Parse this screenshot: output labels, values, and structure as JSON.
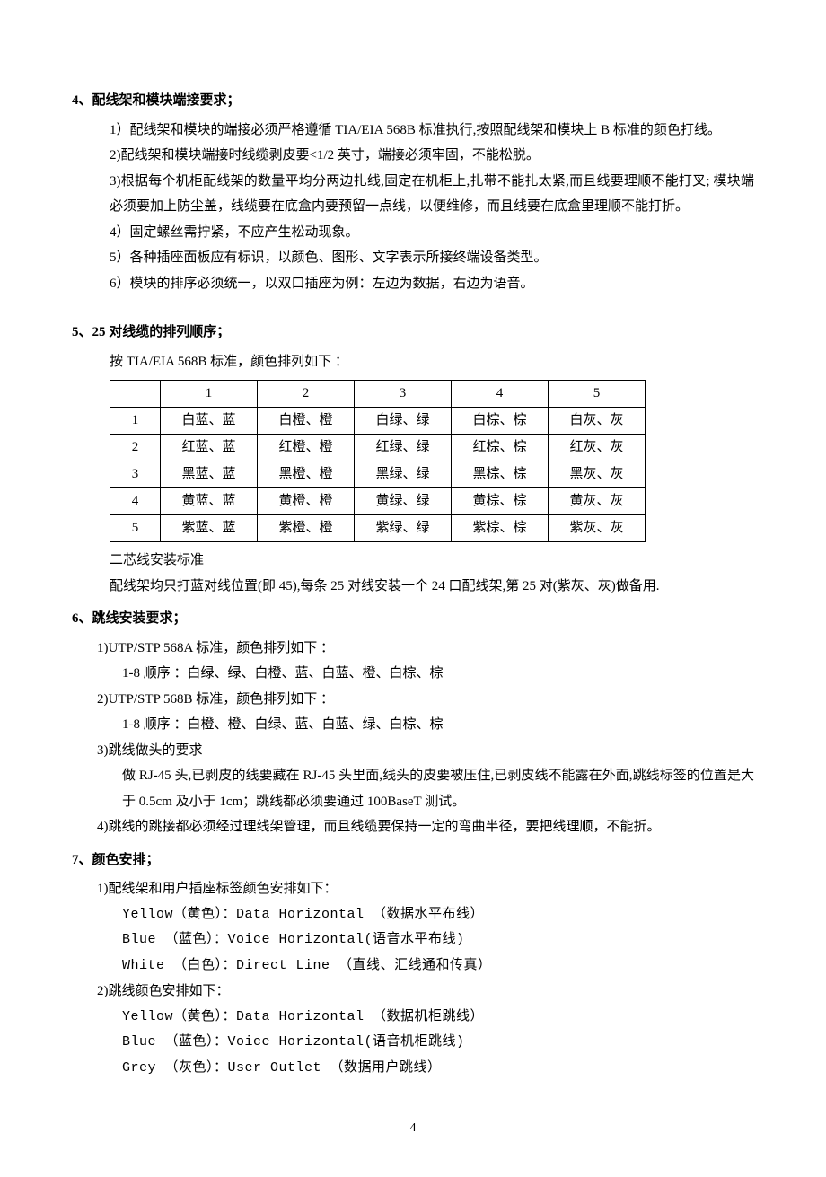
{
  "section4": {
    "heading": "4、配线架和模块端接要求；",
    "items": [
      "1）配线架和模块的端接必须严格遵循 TIA/EIA 568B 标准执行,按照配线架和模块上 B 标准的颜色打线。",
      "2)配线架和模块端接时线缆剥皮要<1/2 英寸，端接必须牢固，不能松脱。",
      "3)根据每个机柜配线架的数量平均分两边扎线,固定在机柜上,扎带不能扎太紧,而且线要理顺不能打叉; 模块端必须要加上防尘盖，线缆要在底盒内要预留一点线，以便维修，而且线要在底盒里理顺不能打折。",
      "4）固定螺丝需拧紧，不应产生松动现象。",
      "5）各种插座面板应有标识，以颜色、图形、文字表示所接终端设备类型。",
      "6）模块的排序必须统一，以双口插座为例：左边为数据，右边为语音。"
    ]
  },
  "section5": {
    "heading": "5、25 对线缆的排列顺序；",
    "intro": "按 TIA/EIA 568B 标准，颜色排列如下 ：",
    "table": {
      "columns": [
        "",
        "1",
        "2",
        "3",
        "4",
        "5"
      ],
      "rows": [
        [
          "1",
          "白蓝、蓝",
          "白橙、橙",
          "白绿、绿",
          "白棕、棕",
          "白灰、灰"
        ],
        [
          "2",
          "红蓝、蓝",
          "红橙、橙",
          "红绿、绿",
          "红棕、棕",
          "红灰、灰"
        ],
        [
          "3",
          "黑蓝、蓝",
          "黑橙、橙",
          "黑绿、绿",
          "黑棕、棕",
          "黑灰、灰"
        ],
        [
          "4",
          "黄蓝、蓝",
          "黄橙、橙",
          "黄绿、绿",
          "黄棕、棕",
          "黄灰、灰"
        ],
        [
          "5",
          "紫蓝、蓝",
          "紫橙、橙",
          "紫绿、绿",
          "紫棕、棕",
          "紫灰、灰"
        ]
      ]
    },
    "after": [
      "二芯线安装标准",
      "配线架均只打蓝对线位置(即 45),每条 25 对线安装一个 24 口配线架,第 25 对(紫灰、灰)做备用."
    ]
  },
  "section6": {
    "heading": "6、跳线安装要求；",
    "items": [
      {
        "level": 1,
        "text": "1)UTP/STP 568A 标准，颜色排列如下 ："
      },
      {
        "level": 2,
        "text": "1-8 顺序 ：白绿、绿、白橙、蓝、白蓝、橙、白棕、棕"
      },
      {
        "level": 1,
        "text": "2)UTP/STP 568B 标准，颜色排列如下 ："
      },
      {
        "level": 2,
        "text": "1-8 顺序 ：白橙、橙、白绿、蓝、白蓝、绿、白棕、棕"
      },
      {
        "level": 1,
        "text": "3)跳线做头的要求"
      },
      {
        "level": 2,
        "text": "做 RJ-45 头,已剥皮的线要藏在 RJ-45 头里面,线头的皮要被压住,已剥皮线不能露在外面,跳线标签的位置是大于 0.5cm 及小于 1cm；跳线都必须要通过 100BaseT 测试。"
      },
      {
        "level": 1,
        "text": "4)跳线的跳接都必须经过理线架管理，而且线缆要保持一定的弯曲半径，要把线理顺，不能折。"
      }
    ]
  },
  "section7": {
    "heading": "7、颜色安排；",
    "items": [
      {
        "level": 1,
        "text": "1)配线架和用户插座标签颜色安排如下："
      },
      {
        "level": 2,
        "text": "Yellow（黄色）：Data Horizontal （数据水平布线）"
      },
      {
        "level": 2,
        "text": "Blue  （蓝色）：Voice Horizontal(语音水平布线)"
      },
      {
        "level": 2,
        "text": "White （白色）：Direct Line    （直线、汇线通和传真）"
      },
      {
        "level": 1,
        "text": "2)跳线颜色安排如下："
      },
      {
        "level": 2,
        "text": "Yellow（黄色）：Data Horizontal （数据机柜跳线）"
      },
      {
        "level": 2,
        "text": "Blue  （蓝色）：Voice Horizontal(语音机柜跳线)"
      },
      {
        "level": 2,
        "text": "Grey  （灰色）：User Outlet    （数据用户跳线）"
      }
    ]
  },
  "pageNumber": "4"
}
